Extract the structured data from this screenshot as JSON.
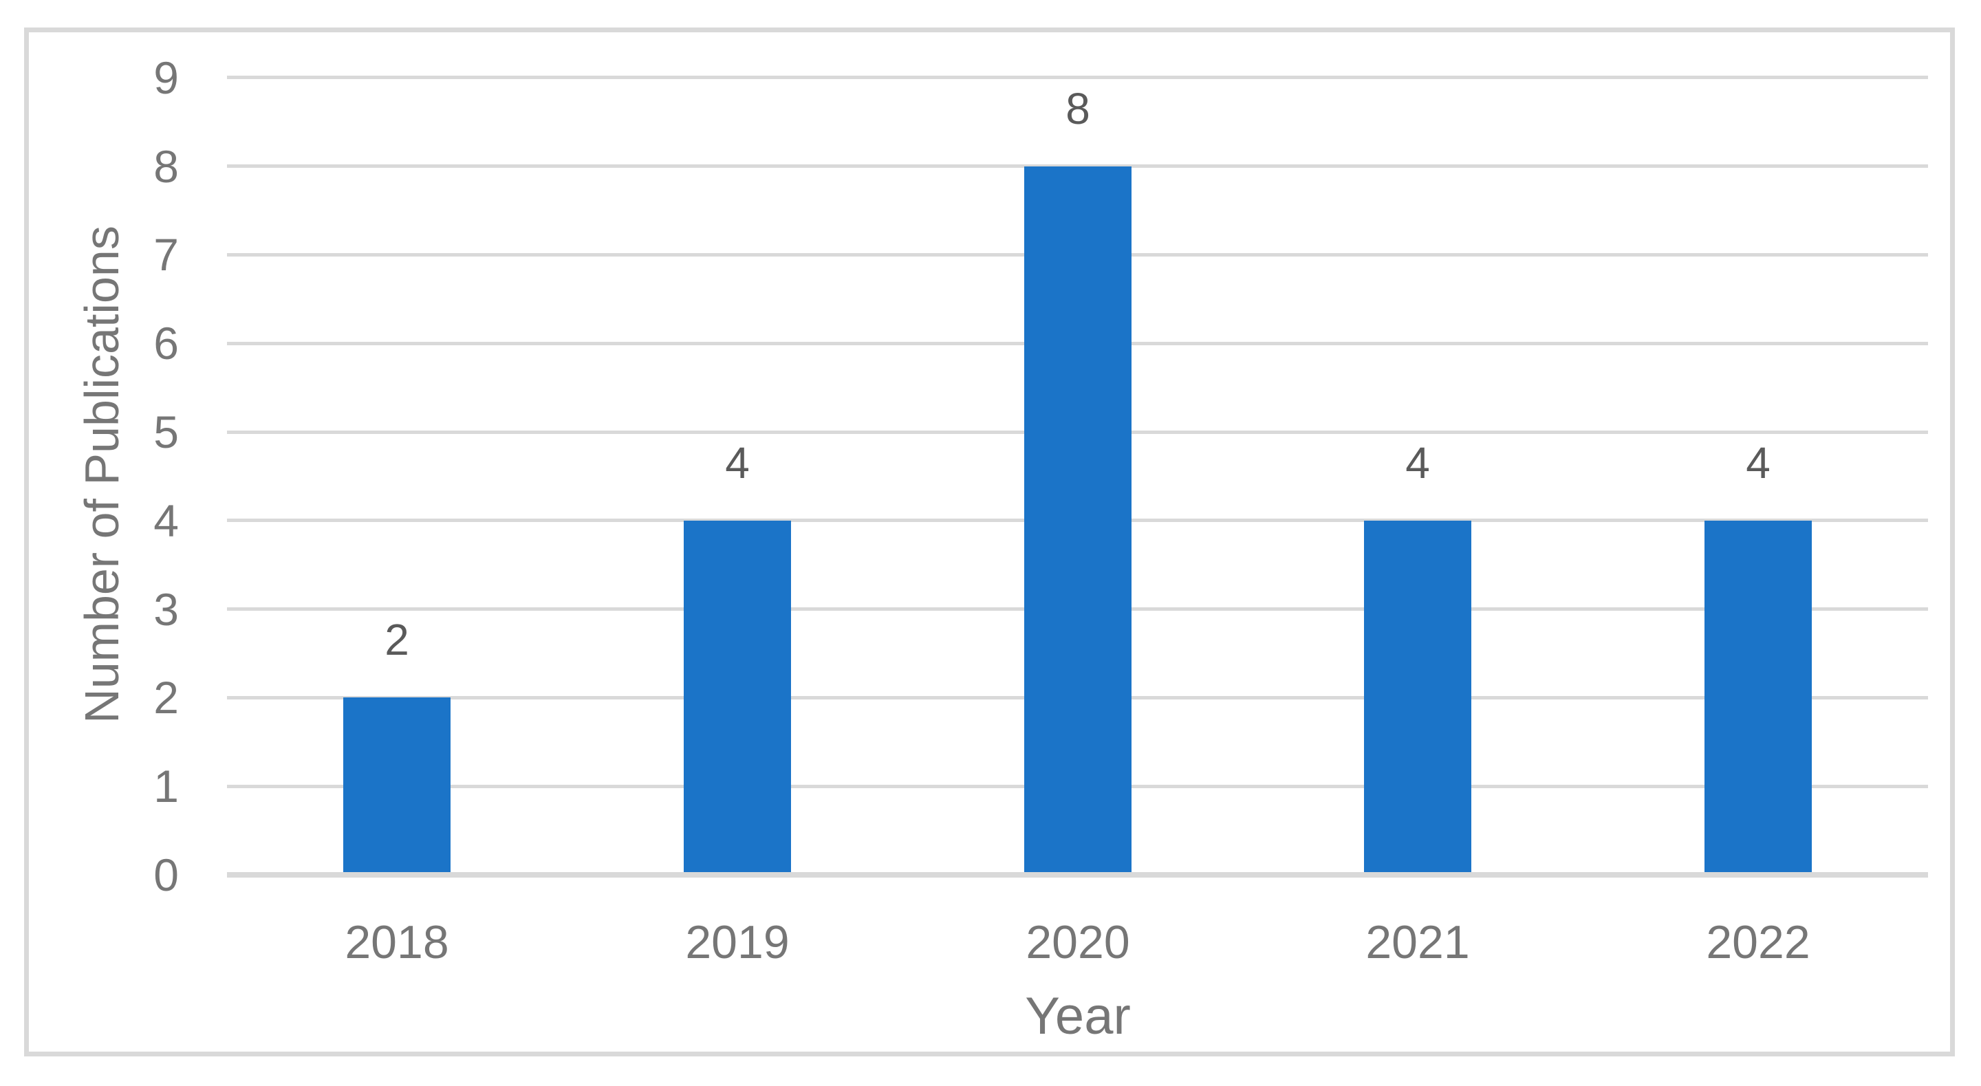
{
  "chart_data": {
    "type": "bar",
    "title": "",
    "categories": [
      "2018",
      "2019",
      "2020",
      "2021",
      "2022"
    ],
    "values": [
      2,
      4,
      8,
      4,
      4
    ],
    "data_labels": [
      "2",
      "4",
      "8",
      "4",
      "4"
    ],
    "xlabel": "Year",
    "ylabel": "Number of Publications",
    "ylim": [
      0,
      9
    ],
    "yticks": [
      0,
      1,
      2,
      3,
      4,
      5,
      6,
      7,
      8,
      9
    ],
    "grid": "horizontal",
    "legend_position": "none",
    "series_count": 1
  },
  "colors": {
    "bar": "#1B74C8",
    "gridline": "#D9D9D9",
    "axis_line": "#D9D9D9",
    "frame_border": "#D9D9D9",
    "tick_label": "#767676",
    "data_label": "#5A5A5A",
    "axis_title": "#767676",
    "background": "#FFFFFF"
  }
}
